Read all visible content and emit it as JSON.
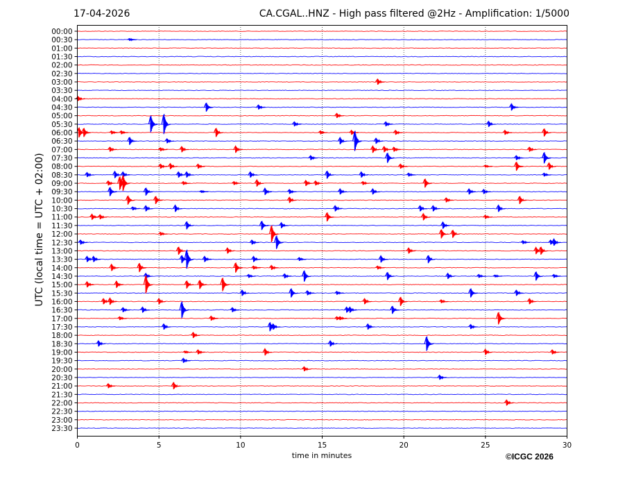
{
  "header": {
    "date": "17-04-2026",
    "title": "CA.CGAL..HNZ - High pass filtered @2Hz - Amplification: 1/5000"
  },
  "footer": {
    "copyright": "©ICGC 2026"
  },
  "chart_data": {
    "type": "line",
    "subtype": "helicorder",
    "title": "CA.CGAL..HNZ - High pass filtered @2Hz - Amplification: 1/5000",
    "xlabel": "time in minutes",
    "ylabel": "UTC (local time = UTC + 02:00)",
    "xlim": [
      0,
      30
    ],
    "xticks": [
      "0",
      "5",
      "10",
      "15",
      "20",
      "25",
      "30"
    ],
    "grid": "vertical dotted at every 5 minutes",
    "row_colors": [
      "#ff0000",
      "#0000ff"
    ],
    "rows": [
      "00:00",
      "00:30",
      "01:00",
      "01:30",
      "02:00",
      "02:30",
      "03:00",
      "03:30",
      "04:00",
      "04:30",
      "05:00",
      "05:30",
      "06:00",
      "06:30",
      "07:00",
      "07:30",
      "08:00",
      "08:30",
      "09:00",
      "09:30",
      "10:00",
      "10:30",
      "11:00",
      "11:30",
      "12:00",
      "12:30",
      "13:00",
      "13:30",
      "14:00",
      "14:30",
      "15:00",
      "15:30",
      "16:00",
      "16:30",
      "17:00",
      "17:30",
      "18:00",
      "18:30",
      "19:00",
      "19:30",
      "20:00",
      "20:30",
      "21:00",
      "21:30",
      "22:00",
      "22:30",
      "23:00",
      "23:30"
    ],
    "events_columns": [
      "row",
      "minute",
      "relative_amplitude"
    ],
    "events": [
      [
        "00:30",
        3.2,
        0.2
      ],
      [
        "03:00",
        18.4,
        0.5
      ],
      [
        "04:00",
        0.05,
        0.4
      ],
      [
        "04:30",
        7.9,
        0.8
      ],
      [
        "04:30",
        11.1,
        0.4
      ],
      [
        "04:30",
        26.6,
        0.6
      ],
      [
        "05:00",
        15.9,
        0.4
      ],
      [
        "05:30",
        4.5,
        1.5
      ],
      [
        "05:30",
        5.3,
        1.8
      ],
      [
        "05:30",
        13.3,
        0.4
      ],
      [
        "05:30",
        18.9,
        0.4
      ],
      [
        "05:30",
        25.2,
        0.5
      ],
      [
        "06:00",
        0.1,
        0.9
      ],
      [
        "06:00",
        0.4,
        0.8
      ],
      [
        "06:00",
        2.1,
        0.3
      ],
      [
        "06:00",
        2.7,
        0.3
      ],
      [
        "06:00",
        8.5,
        0.8
      ],
      [
        "06:00",
        14.9,
        0.3
      ],
      [
        "06:00",
        16.8,
        0.4
      ],
      [
        "06:00",
        19.5,
        0.4
      ],
      [
        "06:00",
        26.2,
        0.4
      ],
      [
        "06:00",
        28.6,
        0.7
      ],
      [
        "06:30",
        3.2,
        0.7
      ],
      [
        "06:30",
        5.5,
        0.4
      ],
      [
        "06:30",
        16.1,
        0.6
      ],
      [
        "06:30",
        17.0,
        1.8
      ],
      [
        "06:30",
        18.3,
        0.5
      ],
      [
        "07:00",
        2.0,
        0.4
      ],
      [
        "07:00",
        5.1,
        0.3
      ],
      [
        "07:00",
        6.4,
        0.5
      ],
      [
        "07:00",
        9.7,
        0.6
      ],
      [
        "07:00",
        18.1,
        0.6
      ],
      [
        "07:00",
        18.8,
        0.5
      ],
      [
        "07:00",
        19.4,
        0.4
      ],
      [
        "07:00",
        27.7,
        0.4
      ],
      [
        "07:30",
        14.3,
        0.4
      ],
      [
        "07:30",
        19.0,
        0.9
      ],
      [
        "07:30",
        26.9,
        0.4
      ],
      [
        "07:30",
        28.6,
        1.0
      ],
      [
        "08:00",
        5.1,
        0.4
      ],
      [
        "08:00",
        5.7,
        0.5
      ],
      [
        "08:00",
        7.4,
        0.4
      ],
      [
        "08:00",
        19.8,
        0.4
      ],
      [
        "08:00",
        25.0,
        0.2
      ],
      [
        "08:00",
        26.9,
        0.8
      ],
      [
        "08:00",
        28.9,
        0.6
      ],
      [
        "08:30",
        0.6,
        0.4
      ],
      [
        "08:30",
        2.3,
        0.6
      ],
      [
        "08:30",
        2.8,
        0.5
      ],
      [
        "08:30",
        6.2,
        0.5
      ],
      [
        "08:30",
        6.7,
        0.5
      ],
      [
        "08:30",
        10.6,
        0.5
      ],
      [
        "08:30",
        15.3,
        0.7
      ],
      [
        "08:30",
        17.4,
        0.5
      ],
      [
        "08:30",
        20.3,
        0.3
      ],
      [
        "08:30",
        28.6,
        0.3
      ],
      [
        "09:00",
        1.9,
        0.4
      ],
      [
        "09:00",
        2.6,
        1.2
      ],
      [
        "09:00",
        2.8,
        1.4
      ],
      [
        "09:00",
        6.5,
        0.3
      ],
      [
        "09:00",
        9.6,
        0.3
      ],
      [
        "09:00",
        11.0,
        0.6
      ],
      [
        "09:00",
        14.0,
        0.5
      ],
      [
        "09:00",
        14.6,
        0.4
      ],
      [
        "09:00",
        17.5,
        0.3
      ],
      [
        "09:00",
        21.3,
        0.8
      ],
      [
        "09:30",
        2.0,
        0.8
      ],
      [
        "09:30",
        4.2,
        0.7
      ],
      [
        "09:30",
        7.6,
        0.2
      ],
      [
        "09:30",
        11.5,
        0.6
      ],
      [
        "09:30",
        13.0,
        0.4
      ],
      [
        "09:30",
        16.1,
        0.5
      ],
      [
        "09:30",
        18.1,
        0.5
      ],
      [
        "09:30",
        24.0,
        0.5
      ],
      [
        "09:30",
        24.9,
        0.4
      ],
      [
        "10:00",
        3.1,
        0.8
      ],
      [
        "10:00",
        4.8,
        0.7
      ],
      [
        "10:00",
        13.0,
        0.5
      ],
      [
        "10:00",
        22.6,
        0.4
      ],
      [
        "10:00",
        27.1,
        0.7
      ],
      [
        "10:30",
        3.4,
        0.3
      ],
      [
        "10:30",
        4.2,
        0.5
      ],
      [
        "10:30",
        6.0,
        0.6
      ],
      [
        "10:30",
        15.8,
        0.5
      ],
      [
        "10:30",
        21.0,
        0.5
      ],
      [
        "10:30",
        21.8,
        0.5
      ],
      [
        "10:30",
        25.8,
        0.6
      ],
      [
        "11:00",
        0.9,
        0.5
      ],
      [
        "11:00",
        1.4,
        0.4
      ],
      [
        "11:00",
        15.3,
        0.8
      ],
      [
        "11:00",
        21.2,
        0.6
      ],
      [
        "11:00",
        25.0,
        0.3
      ],
      [
        "11:30",
        6.7,
        0.7
      ],
      [
        "11:30",
        11.3,
        0.8
      ],
      [
        "11:30",
        12.5,
        0.5
      ],
      [
        "11:30",
        22.4,
        0.6
      ],
      [
        "12:00",
        5.1,
        0.3
      ],
      [
        "12:00",
        11.9,
        1.5
      ],
      [
        "12:00",
        22.3,
        0.8
      ],
      [
        "12:00",
        23.0,
        0.7
      ],
      [
        "12:30",
        0.2,
        0.4
      ],
      [
        "12:30",
        10.7,
        0.4
      ],
      [
        "12:30",
        12.2,
        1.2
      ],
      [
        "12:30",
        27.3,
        0.3
      ],
      [
        "12:30",
        29.0,
        0.4
      ],
      [
        "12:30",
        29.2,
        0.6
      ],
      [
        "13:00",
        6.2,
        0.7
      ],
      [
        "13:00",
        9.2,
        0.5
      ],
      [
        "13:00",
        20.3,
        0.5
      ],
      [
        "13:00",
        28.1,
        0.6
      ],
      [
        "13:00",
        28.4,
        0.7
      ],
      [
        "13:30",
        0.6,
        0.5
      ],
      [
        "13:30",
        1.0,
        0.5
      ],
      [
        "13:30",
        6.4,
        0.7
      ],
      [
        "13:30",
        6.7,
        1.7
      ],
      [
        "13:30",
        7.8,
        0.5
      ],
      [
        "13:30",
        10.8,
        0.5
      ],
      [
        "13:30",
        13.6,
        0.3
      ],
      [
        "13:30",
        18.6,
        0.6
      ],
      [
        "13:30",
        21.5,
        0.7
      ],
      [
        "14:00",
        2.1,
        0.6
      ],
      [
        "14:00",
        3.8,
        0.8
      ],
      [
        "14:00",
        9.7,
        0.9
      ],
      [
        "14:00",
        10.8,
        0.3
      ],
      [
        "14:00",
        11.9,
        0.4
      ],
      [
        "14:00",
        18.4,
        0.3
      ],
      [
        "14:30",
        4.2,
        0.5
      ],
      [
        "14:30",
        10.5,
        0.3
      ],
      [
        "14:30",
        12.7,
        0.4
      ],
      [
        "14:30",
        13.9,
        1.0
      ],
      [
        "14:30",
        19.0,
        0.7
      ],
      [
        "14:30",
        22.7,
        0.5
      ],
      [
        "14:30",
        24.6,
        0.3
      ],
      [
        "14:30",
        25.6,
        0.2
      ],
      [
        "14:30",
        28.1,
        0.8
      ],
      [
        "14:30",
        29.2,
        0.3
      ],
      [
        "15:00",
        0.6,
        0.5
      ],
      [
        "15:00",
        2.4,
        0.6
      ],
      [
        "15:00",
        4.2,
        1.6
      ],
      [
        "15:00",
        6.7,
        0.7
      ],
      [
        "15:00",
        7.5,
        0.8
      ],
      [
        "15:00",
        8.9,
        1.2
      ],
      [
        "15:30",
        10.1,
        0.5
      ],
      [
        "15:30",
        13.1,
        0.8
      ],
      [
        "15:30",
        14.1,
        0.4
      ],
      [
        "15:30",
        15.9,
        0.3
      ],
      [
        "15:30",
        24.1,
        0.8
      ],
      [
        "15:30",
        26.9,
        0.5
      ],
      [
        "16:00",
        1.6,
        0.5
      ],
      [
        "16:00",
        2.0,
        0.6
      ],
      [
        "16:00",
        5.0,
        0.5
      ],
      [
        "16:00",
        17.6,
        0.5
      ],
      [
        "16:00",
        19.8,
        0.8
      ],
      [
        "16:00",
        22.3,
        0.3
      ],
      [
        "16:00",
        27.7,
        0.5
      ],
      [
        "16:30",
        2.8,
        0.4
      ],
      [
        "16:30",
        4.0,
        0.5
      ],
      [
        "16:30",
        6.4,
        1.5
      ],
      [
        "16:30",
        9.5,
        0.4
      ],
      [
        "16:30",
        16.5,
        0.5
      ],
      [
        "16:30",
        16.7,
        0.5
      ],
      [
        "16:30",
        19.3,
        0.7
      ],
      [
        "17:00",
        2.6,
        0.3
      ],
      [
        "17:00",
        8.2,
        0.4
      ],
      [
        "17:00",
        15.9,
        0.3
      ],
      [
        "17:00",
        16.1,
        0.3
      ],
      [
        "17:00",
        25.8,
        1.1
      ],
      [
        "17:30",
        5.3,
        0.5
      ],
      [
        "17:30",
        11.8,
        0.8
      ],
      [
        "17:30",
        12.0,
        0.5
      ],
      [
        "17:30",
        17.8,
        0.5
      ],
      [
        "17:30",
        24.1,
        0.4
      ],
      [
        "18:00",
        7.1,
        0.5
      ],
      [
        "18:30",
        1.3,
        0.5
      ],
      [
        "18:30",
        15.5,
        0.5
      ],
      [
        "18:30",
        21.4,
        1.3
      ],
      [
        "19:00",
        6.6,
        0.2
      ],
      [
        "19:00",
        7.4,
        0.4
      ],
      [
        "19:00",
        11.5,
        0.6
      ],
      [
        "19:00",
        25.0,
        0.5
      ],
      [
        "19:00",
        29.1,
        0.4
      ],
      [
        "19:30",
        6.5,
        0.4
      ],
      [
        "20:00",
        13.9,
        0.4
      ],
      [
        "20:30",
        22.2,
        0.4
      ],
      [
        "21:00",
        1.9,
        0.4
      ],
      [
        "21:00",
        5.9,
        0.6
      ],
      [
        "22:00",
        26.3,
        0.5
      ]
    ]
  }
}
